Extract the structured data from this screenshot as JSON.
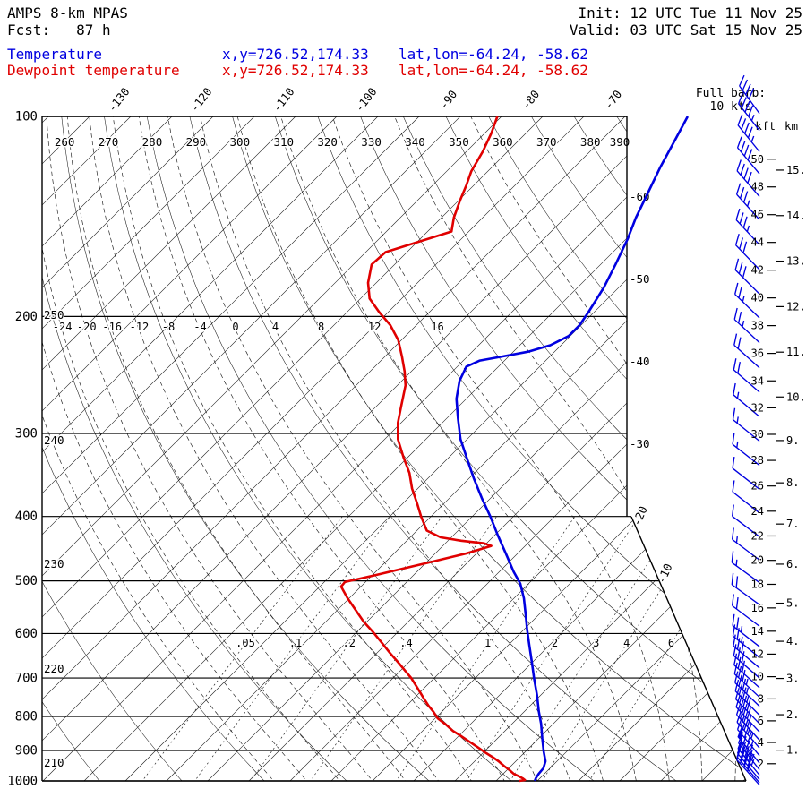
{
  "header": {
    "model": "AMPS 8-km MPAS",
    "fcst": "Fcst:   87 h",
    "init": "Init: 12 UTC Tue 11 Nov 25",
    "valid": "Valid: 03 UTC Sat 15 Nov 25",
    "temp_label": "Temperature",
    "dewp_label": "Dewpoint temperature",
    "xy": "x,y=726.52,174.33",
    "latlon": "lat,lon=-64.24, -58.62"
  },
  "barb_note": {
    "line1": "Full barb:",
    "line2": "10 kts"
  },
  "axes": {
    "kft_label": "kft",
    "km_label": "km"
  },
  "chart_data": {
    "type": "skewt-log-p-sounding",
    "pressure_levels_hpa": [
      100,
      200,
      300,
      400,
      500,
      600,
      700,
      800,
      900,
      1000
    ],
    "isotherm_range_c": [
      -145,
      30
    ],
    "isotherm_step_c": 5,
    "isotherm_labels_top_c": [
      -130,
      -120,
      -110,
      -100,
      -90,
      -80,
      -70
    ],
    "isotherm_labels_right_c": [
      -60,
      -50,
      -40,
      -30,
      -20,
      -10
    ],
    "dry_adiabat_range_k": [
      200,
      440,
      10
    ],
    "dry_adiabat_labels_top_k": [
      260,
      270,
      280,
      290,
      300,
      310,
      320,
      330,
      340,
      350,
      360,
      370,
      380,
      390
    ],
    "dry_adiabat_labels_left_k": [
      250,
      240,
      230,
      220,
      210
    ],
    "moist_adiabat_values_c": [
      -32,
      -28,
      -24,
      -20,
      -16,
      -12,
      -8,
      -4,
      0,
      4,
      8,
      12,
      16,
      20,
      24
    ],
    "moist_adiabat_labels_c": [
      -24,
      -20,
      -16,
      -12,
      -8,
      -4,
      0,
      4,
      8,
      12,
      16
    ],
    "mixing_ratio_values_gkg": [
      0.05,
      0.1,
      0.2,
      0.4,
      1,
      2,
      3,
      4,
      6
    ],
    "mixing_ratio_labels": [
      ".05",
      ".1",
      ".2",
      ".4",
      "1",
      "2",
      "3",
      "4",
      "6"
    ],
    "temperature_curve": {
      "label": "Temperature",
      "color": "#0000e0",
      "points_p_t": [
        [
          100,
          -62.4
        ],
        [
          109,
          -61
        ],
        [
          119,
          -59.6
        ],
        [
          130,
          -58
        ],
        [
          142,
          -56.4
        ],
        [
          153,
          -54.8
        ],
        [
          167,
          -53.2
        ],
        [
          181,
          -51.8
        ],
        [
          197,
          -50.7
        ],
        [
          206,
          -50.2
        ],
        [
          214,
          -50.2
        ],
        [
          221,
          -51.3
        ],
        [
          226,
          -53.2
        ],
        [
          230,
          -55.9
        ],
        [
          233,
          -58
        ],
        [
          238,
          -58.9
        ],
        [
          250,
          -58
        ],
        [
          266,
          -56.2
        ],
        [
          285,
          -53.6
        ],
        [
          306,
          -50.8
        ],
        [
          327,
          -47.7
        ],
        [
          350,
          -44.5
        ],
        [
          375,
          -41.1
        ],
        [
          400,
          -37.8
        ],
        [
          427,
          -34.6
        ],
        [
          455,
          -31.4
        ],
        [
          484,
          -28.3
        ],
        [
          505,
          -26
        ],
        [
          531,
          -23.8
        ],
        [
          562,
          -21.6
        ],
        [
          592,
          -19.6
        ],
        [
          624,
          -17.5
        ],
        [
          664,
          -15
        ],
        [
          700,
          -12.9
        ],
        [
          742,
          -10.5
        ],
        [
          785,
          -8.3
        ],
        [
          820,
          -6.5
        ],
        [
          862,
          -4.6
        ],
        [
          903,
          -2.8
        ],
        [
          934,
          -1.4
        ],
        [
          957,
          -0.8
        ],
        [
          976,
          -0.7
        ],
        [
          991,
          -0.5
        ],
        [
          1000,
          -0.3
        ]
      ]
    },
    "dewpoint_curve": {
      "label": "Dewpoint temperature",
      "color": "#e00000",
      "points_p_t": [
        [
          100,
          -85.5
        ],
        [
          106,
          -84.2
        ],
        [
          113,
          -83
        ],
        [
          121,
          -82
        ],
        [
          127,
          -80.9
        ],
        [
          134,
          -79.8
        ],
        [
          142,
          -78.5
        ],
        [
          149,
          -77.1
        ],
        [
          160,
          -82.6
        ],
        [
          167,
          -82.8
        ],
        [
          178,
          -81
        ],
        [
          188,
          -78.9
        ],
        [
          197,
          -76.1
        ],
        [
          206,
          -73.2
        ],
        [
          217,
          -70.4
        ],
        [
          230,
          -67.9
        ],
        [
          242,
          -65.8
        ],
        [
          254,
          -64
        ],
        [
          272,
          -62.1
        ],
        [
          289,
          -60.4
        ],
        [
          306,
          -58.4
        ],
        [
          326,
          -55.5
        ],
        [
          344,
          -52.9
        ],
        [
          363,
          -50.7
        ],
        [
          382,
          -48.3
        ],
        [
          400,
          -46.2
        ],
        [
          420,
          -43.8
        ],
        [
          430,
          -41.3
        ],
        [
          435,
          -38.4
        ],
        [
          439,
          -35.3
        ],
        [
          443,
          -34.1
        ],
        [
          455,
          -36.3
        ],
        [
          472,
          -40.4
        ],
        [
          490,
          -44.6
        ],
        [
          502,
          -47.5
        ],
        [
          510,
          -47.4
        ],
        [
          531,
          -45.2
        ],
        [
          553,
          -42.8
        ],
        [
          576,
          -40.4
        ],
        [
          597,
          -38
        ],
        [
          618,
          -35.8
        ],
        [
          642,
          -33.4
        ],
        [
          666,
          -31
        ],
        [
          685,
          -29.2
        ],
        [
          700,
          -27.8
        ],
        [
          720,
          -26.2
        ],
        [
          738,
          -24.8
        ],
        [
          754,
          -23.6
        ],
        [
          771,
          -22.3
        ],
        [
          787,
          -21
        ],
        [
          805,
          -19.7
        ],
        [
          822,
          -18
        ],
        [
          841,
          -16.3
        ],
        [
          856,
          -14.7
        ],
        [
          873,
          -13
        ],
        [
          889,
          -11.4
        ],
        [
          906,
          -9.8
        ],
        [
          920,
          -8.4
        ],
        [
          934,
          -7.1
        ],
        [
          949,
          -5.9
        ],
        [
          963,
          -4.7
        ],
        [
          976,
          -3.7
        ],
        [
          984,
          -2.8
        ],
        [
          991,
          -2.1
        ],
        [
          997,
          -1.6
        ],
        [
          1000,
          -2.2
        ]
      ]
    },
    "wind_barbs_p_spd_dir": [
      [
        99,
        40,
        324
      ],
      [
        105,
        45,
        322
      ],
      [
        113,
        45,
        321
      ],
      [
        122,
        40,
        320
      ],
      [
        132,
        40,
        319
      ],
      [
        143,
        35,
        318
      ],
      [
        156,
        35,
        317
      ],
      [
        170,
        30,
        316
      ],
      [
        185,
        30,
        315
      ],
      [
        201,
        25,
        314
      ],
      [
        219,
        25,
        313
      ],
      [
        239,
        20,
        312
      ],
      [
        260,
        20,
        311
      ],
      [
        283,
        15,
        310
      ],
      [
        308,
        15,
        309
      ],
      [
        335,
        15,
        308
      ],
      [
        364,
        10,
        308
      ],
      [
        395,
        10,
        308
      ],
      [
        429,
        10,
        307
      ],
      [
        465,
        15,
        307
      ],
      [
        503,
        15,
        306
      ],
      [
        543,
        20,
        306
      ],
      [
        585,
        20,
        307
      ],
      [
        628,
        25,
        308
      ],
      [
        652,
        25,
        309
      ],
      [
        676,
        30,
        310
      ],
      [
        700,
        30,
        311
      ],
      [
        724,
        30,
        312
      ],
      [
        748,
        35,
        313
      ],
      [
        772,
        35,
        314
      ],
      [
        796,
        35,
        315
      ],
      [
        820,
        40,
        316
      ],
      [
        844,
        40,
        317
      ],
      [
        868,
        40,
        318
      ],
      [
        892,
        45,
        319
      ],
      [
        916,
        45,
        320
      ],
      [
        940,
        50,
        321
      ],
      [
        962,
        45,
        322
      ],
      [
        980,
        45,
        321
      ],
      [
        995,
        40,
        320
      ],
      [
        1006,
        40,
        319
      ],
      [
        1014,
        35,
        318
      ]
    ],
    "height_scale": {
      "kft_values": [
        50,
        48,
        46,
        44,
        42,
        40,
        38,
        36,
        34,
        32,
        30,
        28,
        26,
        24,
        22,
        20,
        18,
        16,
        14,
        12,
        10,
        8,
        6,
        4,
        2
      ],
      "km_values": [
        15,
        14,
        13,
        12,
        11,
        10,
        9,
        8,
        7,
        6,
        5,
        4,
        3,
        2,
        1
      ]
    }
  }
}
